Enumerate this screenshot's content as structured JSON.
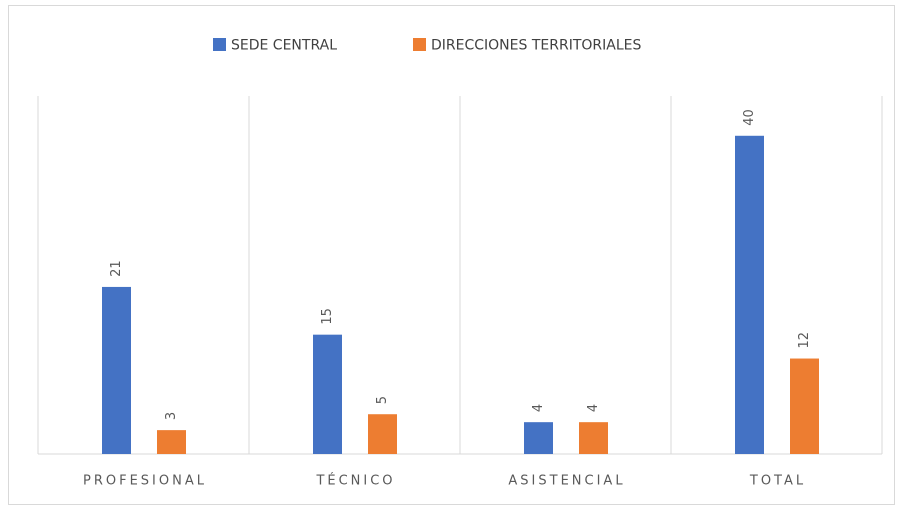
{
  "chart_data": {
    "type": "bar",
    "categories": [
      "PROFESIONAL",
      "TÉCNICO",
      "ASISTENCIAL",
      "TOTAL"
    ],
    "series": [
      {
        "name": "SEDE CENTRAL",
        "color": "#4472c4",
        "values": [
          21,
          15,
          4,
          40
        ]
      },
      {
        "name": "DIRECCIONES TERRITORIALES",
        "color": "#ed7d31",
        "values": [
          3,
          5,
          4,
          12
        ]
      }
    ],
    "ylim": [
      0,
      45
    ],
    "legend": "top",
    "grid": true
  }
}
